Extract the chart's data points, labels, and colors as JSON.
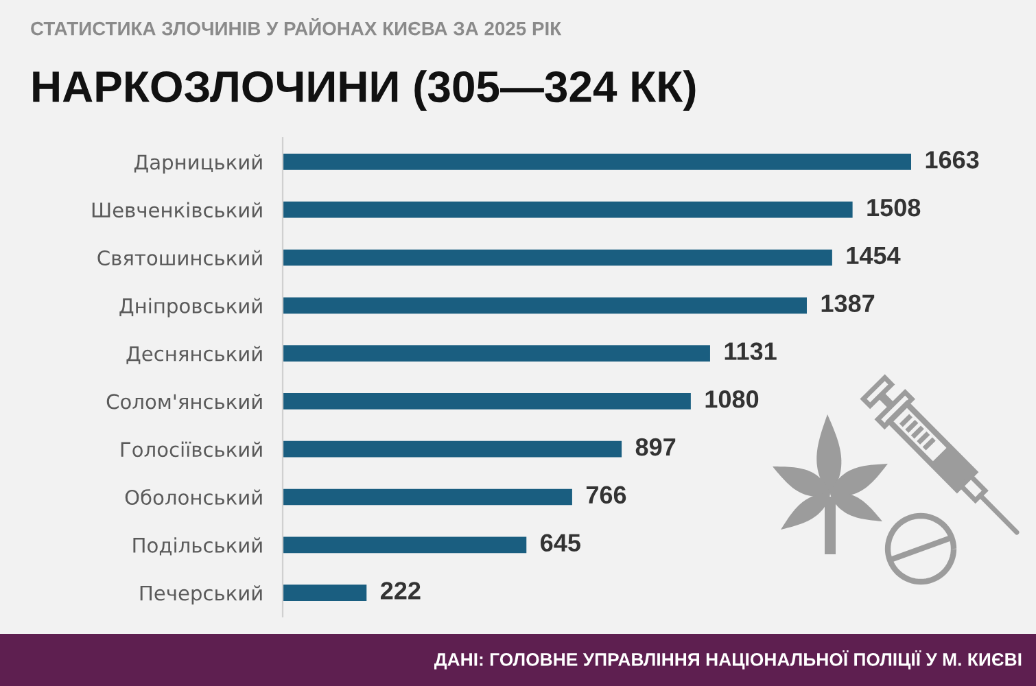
{
  "chart_data": {
    "type": "bar",
    "orientation": "horizontal",
    "title": "НАРКОЗЛОЧИНИ (305—324 КК)",
    "subtitle": "СТАТИСТИКА ЗЛОЧИНІВ У РАЙОНАХ КИЄВА ЗА 2025 РІК",
    "categories": [
      "Дарницький",
      "Шевченківський",
      "Святошинський",
      "Дніпровський",
      "Деснянський",
      "Солом'янський",
      "Голосіївський",
      "Оболонський",
      "Подільський",
      "Печерський"
    ],
    "values": [
      1663,
      1508,
      1454,
      1387,
      1131,
      1080,
      897,
      766,
      645,
      222
    ],
    "color": "#1a5e80",
    "data_labels": true,
    "annotations": [
      "ДАНІ: ГОЛОВНЕ УПРАВЛІННЯ НАЦІОНАЛЬНОЇ ПОЛІЦІЇ У М. КИЄВІ"
    ]
  }
}
